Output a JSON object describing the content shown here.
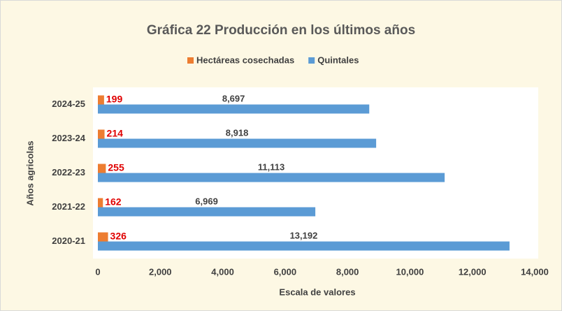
{
  "chart_data": {
    "type": "hbar",
    "title": "Gráfica 22 Producción en los últimos años",
    "categories": [
      "2020-21",
      "2021-22",
      "2022-23",
      "2023-24",
      "2024-25"
    ],
    "series": [
      {
        "name": "Hectáreas cosechadas",
        "color": "#ed7d31",
        "values": [
          326,
          162,
          255,
          214,
          199
        ]
      },
      {
        "name": "Quintales",
        "color": "#5b9bd5",
        "values": [
          13192,
          6969,
          11113,
          8918,
          8697
        ],
        "value_labels": [
          "13,192",
          "6,969",
          "11,113",
          "8,918",
          "8,697"
        ]
      }
    ],
    "xlabel": "Escala de valores",
    "ylabel": "Años agricolas",
    "xlim": [
      0,
      14000
    ],
    "xticks": [
      0,
      {
        "value": 2000,
        "label": "2,000"
      },
      {
        "value": 4000,
        "label": "4,000"
      },
      {
        "value": 6000,
        "label": "6,000"
      },
      {
        "value": 8000,
        "label": "8,000"
      },
      {
        "value": 10000,
        "label": "10,000"
      },
      {
        "value": 12000,
        "label": "12,000"
      },
      {
        "value": 14000,
        "label": "14,000"
      }
    ],
    "legend": "top"
  }
}
